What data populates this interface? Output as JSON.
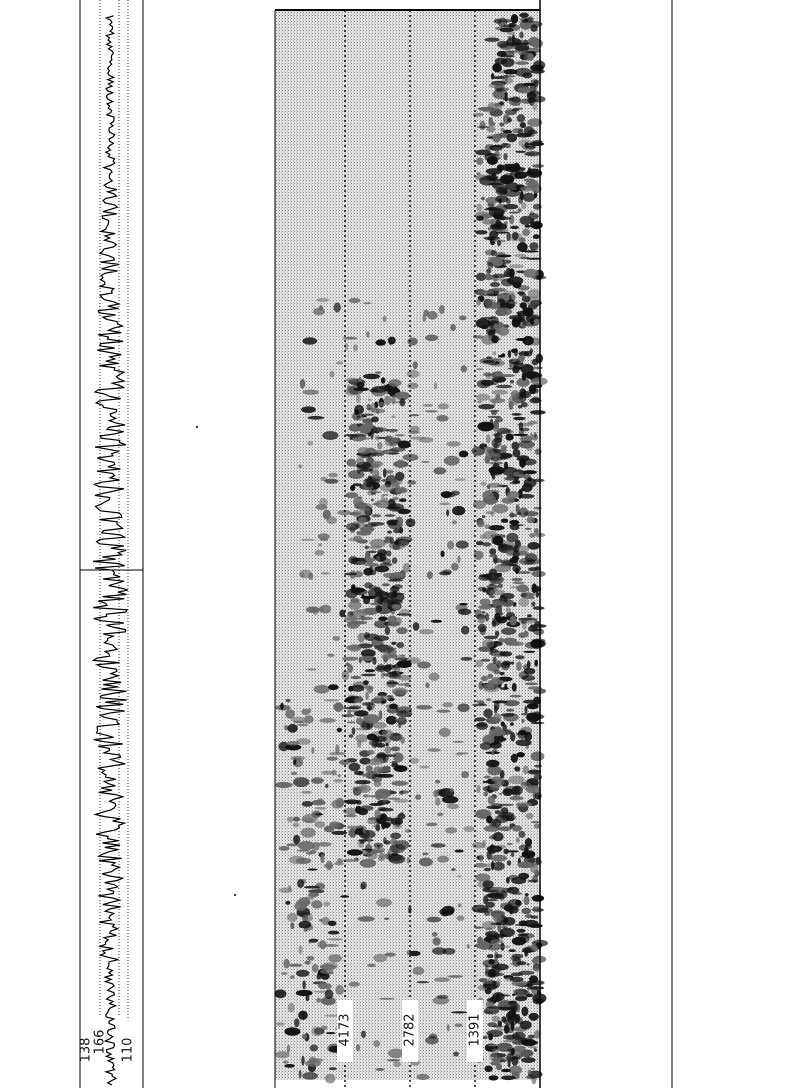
{
  "waveform_panel": {
    "ticks": [
      "166",
      "138",
      "110"
    ]
  },
  "spectrogram_panel": {
    "ticks": [
      "4173",
      "2782",
      "1391"
    ]
  }
}
